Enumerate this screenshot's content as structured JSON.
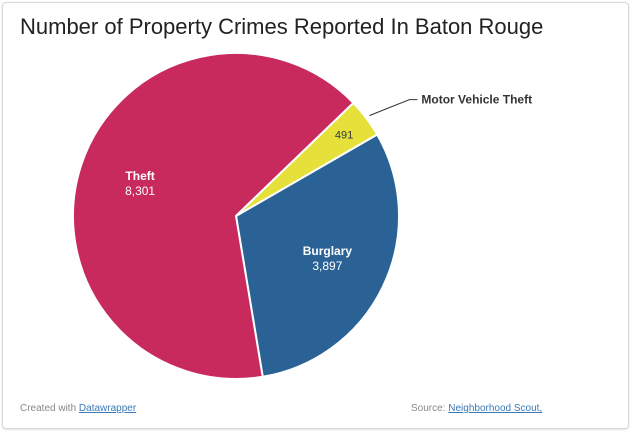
{
  "chart_data": {
    "type": "pie",
    "title": "Number of Property Crimes Reported In Baton Rouge",
    "slices": [
      {
        "label": "Burglary",
        "value": 3897,
        "value_label": "3,897",
        "color": "#2b6295"
      },
      {
        "label": "Theft",
        "value": 8301,
        "value_label": "8,301",
        "color": "#c92a5e"
      },
      {
        "label": "Motor Vehicle Theft",
        "value": 491,
        "value_label": "491",
        "color": "#e5e13a"
      }
    ]
  },
  "footer": {
    "created_prefix": "Created with",
    "created_link": "Datawrapper",
    "source_prefix": "Source:",
    "source_link": "Neighborhood Scout,"
  }
}
